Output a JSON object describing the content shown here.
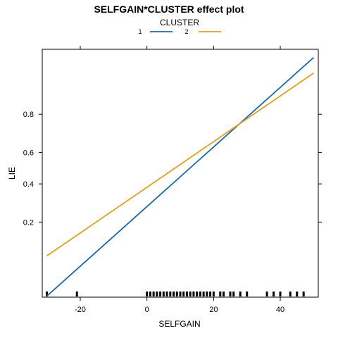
{
  "chart_data": {
    "type": "line",
    "title": "SELFGAIN*CLUSTER effect plot",
    "xlabel": "SELFGAIN",
    "ylabel": "LIE",
    "xlim": [
      -31.4,
      51.4
    ],
    "x_ticks": [
      -20,
      0,
      20,
      40
    ],
    "x_tick_labels": [
      "-20",
      "0",
      "20",
      "40"
    ],
    "y_ticks": [
      0.2,
      0.4,
      0.6,
      0.8
    ],
    "y_tick_labels": [
      "0.2",
      "0.4",
      "0.6",
      "0.8"
    ],
    "y_scale": "logit",
    "ylim": [
      0.035,
      0.955
    ],
    "legend": {
      "title": "CLUSTER",
      "placement": "top",
      "entries": [
        {
          "label": "1",
          "color": "#1a6aa8"
        },
        {
          "label": "2",
          "color": "#e0a020"
        }
      ]
    },
    "series": [
      {
        "color": "#1a6aa8",
        "x": [
          -30,
          50
        ],
        "y": [
          0.036,
          0.945
        ]
      },
      {
        "color": "#e0a020",
        "x": [
          -30,
          50
        ],
        "y": [
          0.095,
          0.92
        ]
      }
    ],
    "rug_x": [
      -30,
      -21,
      0,
      1,
      2,
      3,
      4,
      5,
      6,
      7,
      8,
      9,
      10,
      11,
      12,
      13,
      14,
      15,
      16,
      17,
      18,
      19,
      20,
      22,
      23,
      25,
      26,
      28,
      30,
      36,
      38,
      40,
      43,
      45,
      47
    ],
    "grid": false
  }
}
